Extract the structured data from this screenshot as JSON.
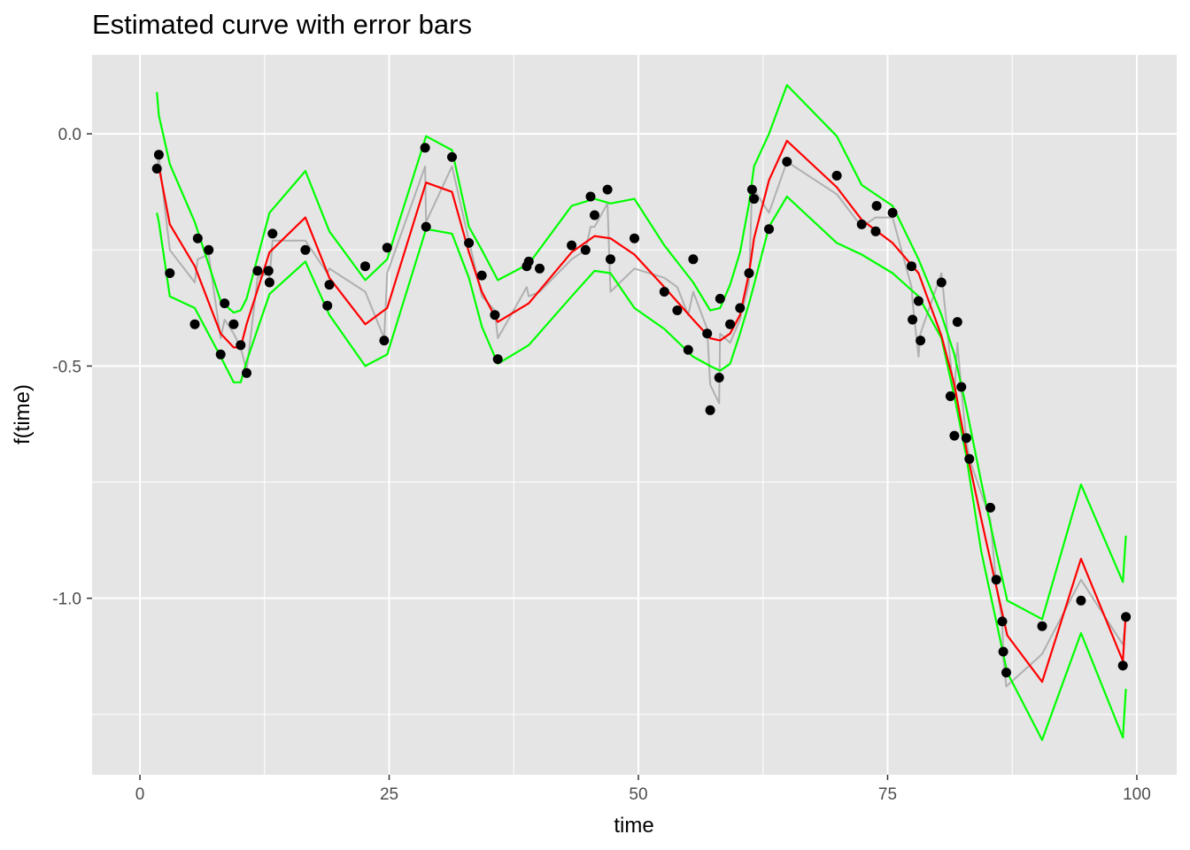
{
  "chart_data": {
    "type": "line",
    "title": "Estimated curve with error bars",
    "xlabel": "time",
    "ylabel": "f(time)",
    "xlim": [
      -4.8,
      104.0
    ],
    "ylim": [
      -1.38,
      0.17
    ],
    "x_ticks": [
      0,
      25,
      50,
      75,
      100
    ],
    "x_tick_labels": [
      "0",
      "25",
      "50",
      "75",
      "100"
    ],
    "y_ticks": [
      0.0,
      -0.5,
      -1.0
    ],
    "y_tick_labels": [
      "0.0",
      "-0.5",
      "-1.0"
    ],
    "grid": true,
    "legend": "none",
    "colors": {
      "panel": "#e5e5e5",
      "grid": "#ffffff",
      "points": "#000000",
      "raw_line": "#b0b0b0",
      "fit": "#ff0000",
      "bands": "#00ff00"
    },
    "series": [
      {
        "type": "scatter",
        "x": [
          1.7,
          1.9,
          3.0,
          5.5,
          5.8,
          6.9,
          8.1,
          8.5,
          9.4,
          10.1,
          10.7,
          11.8,
          12.9,
          13.0,
          13.3,
          16.6,
          18.8,
          19.0,
          22.6,
          24.5,
          24.8,
          28.6,
          28.7,
          31.3,
          33.0,
          34.3,
          35.6,
          35.9,
          38.8,
          39.0,
          40.1,
          43.3,
          44.7,
          45.2,
          45.6,
          46.9,
          47.2,
          49.6,
          52.6,
          53.9,
          55.0,
          55.5,
          56.9,
          57.2,
          58.1,
          58.2,
          59.2,
          60.2,
          61.1,
          61.4,
          61.6,
          63.1,
          64.9,
          69.9,
          72.4,
          73.8,
          73.9,
          75.5,
          77.4,
          77.5,
          78.1,
          78.3,
          80.4,
          81.3,
          81.7,
          82.0,
          82.4,
          82.9,
          83.2,
          85.3,
          85.9,
          86.5,
          86.6,
          86.9,
          90.5,
          94.4,
          98.6,
          98.9
        ],
        "y": [
          -0.075,
          -0.045,
          -0.3,
          -0.41,
          -0.225,
          -0.25,
          -0.475,
          -0.365,
          -0.41,
          -0.455,
          -0.515,
          -0.295,
          -0.295,
          -0.32,
          -0.215,
          -0.25,
          -0.37,
          -0.325,
          -0.285,
          -0.445,
          -0.245,
          -0.03,
          -0.2,
          -0.05,
          -0.235,
          -0.305,
          -0.39,
          -0.485,
          -0.285,
          -0.275,
          -0.29,
          -0.24,
          -0.25,
          -0.135,
          -0.175,
          -0.12,
          -0.27,
          -0.225,
          -0.34,
          -0.38,
          -0.465,
          -0.27,
          -0.43,
          -0.595,
          -0.525,
          -0.355,
          -0.41,
          -0.375,
          -0.3,
          -0.12,
          -0.14,
          -0.205,
          -0.06,
          -0.09,
          -0.195,
          -0.21,
          -0.155,
          -0.17,
          -0.285,
          -0.4,
          -0.36,
          -0.445,
          -0.32,
          -0.565,
          -0.65,
          -0.405,
          -0.545,
          -0.655,
          -0.7,
          -0.805,
          -0.96,
          -1.05,
          -1.115,
          -1.16,
          -1.06,
          -1.005,
          -1.145,
          -1.04
        ]
      },
      {
        "type": "line",
        "x": [
          1.7,
          1.9,
          3.0,
          5.5,
          5.8,
          6.9,
          8.1,
          8.5,
          9.4,
          10.1,
          10.7,
          11.8,
          12.9,
          13.0,
          13.3,
          16.6,
          18.8,
          19.0,
          22.6,
          24.5,
          24.8,
          28.6,
          28.7,
          31.3,
          33.0,
          34.3,
          35.6,
          35.9,
          38.8,
          39.0,
          40.1,
          43.3,
          44.7,
          45.2,
          45.6,
          46.9,
          47.2,
          49.6,
          52.6,
          53.9,
          55.0,
          55.5,
          56.9,
          57.2,
          58.1,
          58.2,
          59.2,
          60.2,
          61.1,
          61.4,
          61.6,
          63.1,
          64.9,
          69.9,
          72.4,
          73.8,
          73.9,
          75.5,
          77.4,
          77.5,
          78.1,
          78.3,
          80.4,
          81.3,
          81.7,
          82.0,
          82.4,
          82.9,
          83.2,
          85.3,
          85.9,
          86.5,
          86.6,
          86.9,
          90.5,
          94.4,
          98.6,
          98.9
        ],
        "y": [
          -0.07,
          -0.05,
          -0.25,
          -0.32,
          -0.27,
          -0.26,
          -0.44,
          -0.4,
          -0.43,
          -0.46,
          -0.51,
          -0.31,
          -0.3,
          -0.31,
          -0.23,
          -0.23,
          -0.3,
          -0.29,
          -0.34,
          -0.44,
          -0.3,
          -0.07,
          -0.19,
          -0.07,
          -0.23,
          -0.35,
          -0.38,
          -0.44,
          -0.33,
          -0.35,
          -0.34,
          -0.27,
          -0.25,
          -0.2,
          -0.2,
          -0.15,
          -0.34,
          -0.29,
          -0.31,
          -0.33,
          -0.39,
          -0.34,
          -0.42,
          -0.54,
          -0.58,
          -0.43,
          -0.45,
          -0.4,
          -0.32,
          -0.11,
          -0.12,
          -0.17,
          -0.06,
          -0.13,
          -0.2,
          -0.18,
          -0.18,
          -0.18,
          -0.33,
          -0.36,
          -0.48,
          -0.43,
          -0.3,
          -0.49,
          -0.56,
          -0.45,
          -0.55,
          -0.66,
          -0.7,
          -0.83,
          -0.97,
          -1.05,
          -1.13,
          -1.19,
          -1.12,
          -0.96,
          -1.1,
          -1.04
        ]
      },
      {
        "type": "line",
        "x": [
          1.7,
          1.9,
          3.0,
          5.5,
          8.1,
          9.4,
          10.1,
          10.7,
          13.0,
          16.6,
          19.0,
          22.6,
          24.8,
          28.7,
          31.3,
          33.0,
          34.3,
          35.9,
          39.0,
          43.3,
          45.6,
          47.2,
          49.6,
          52.6,
          55.5,
          57.2,
          58.2,
          59.2,
          60.2,
          61.1,
          61.6,
          63.1,
          64.9,
          69.9,
          72.4,
          75.5,
          78.1,
          80.4,
          81.7,
          82.9,
          84.4,
          85.9,
          87.0,
          90.5,
          94.4,
          98.6,
          98.9
        ],
        "y": [
          -0.065,
          -0.07,
          -0.195,
          -0.285,
          -0.43,
          -0.46,
          -0.46,
          -0.41,
          -0.255,
          -0.18,
          -0.31,
          -0.41,
          -0.375,
          -0.105,
          -0.125,
          -0.255,
          -0.34,
          -0.405,
          -0.365,
          -0.255,
          -0.22,
          -0.225,
          -0.26,
          -0.33,
          -0.4,
          -0.44,
          -0.445,
          -0.43,
          -0.39,
          -0.3,
          -0.225,
          -0.1,
          -0.015,
          -0.115,
          -0.185,
          -0.235,
          -0.3,
          -0.435,
          -0.54,
          -0.68,
          -0.83,
          -0.975,
          -1.08,
          -1.18,
          -0.915,
          -1.135,
          -1.03
        ]
      },
      {
        "type": "line",
        "x": [
          1.7,
          1.9,
          3.0,
          5.5,
          8.1,
          9.4,
          10.1,
          10.7,
          13.0,
          16.6,
          19.0,
          22.6,
          24.8,
          28.7,
          31.3,
          33.0,
          34.3,
          35.9,
          39.0,
          43.3,
          45.6,
          47.2,
          49.6,
          52.6,
          55.5,
          57.2,
          58.2,
          59.2,
          60.2,
          61.1,
          61.6,
          63.1,
          64.9,
          69.9,
          72.4,
          75.5,
          78.1,
          80.4,
          81.7,
          82.9,
          84.4,
          85.9,
          87.0,
          90.5,
          94.4,
          98.6,
          98.9
        ],
        "y": [
          0.09,
          0.04,
          -0.065,
          -0.19,
          -0.36,
          -0.385,
          -0.38,
          -0.355,
          -0.17,
          -0.08,
          -0.21,
          -0.315,
          -0.27,
          -0.005,
          -0.035,
          -0.2,
          -0.25,
          -0.315,
          -0.28,
          -0.155,
          -0.14,
          -0.15,
          -0.14,
          -0.24,
          -0.32,
          -0.38,
          -0.375,
          -0.325,
          -0.255,
          -0.15,
          -0.07,
          0.0,
          0.105,
          -0.005,
          -0.11,
          -0.155,
          -0.27,
          -0.39,
          -0.475,
          -0.59,
          -0.75,
          -0.9,
          -1.005,
          -1.045,
          -0.755,
          -0.965,
          -0.865
        ]
      },
      {
        "type": "line",
        "x": [
          1.7,
          1.9,
          3.0,
          5.5,
          8.1,
          9.4,
          10.1,
          10.7,
          13.0,
          16.6,
          19.0,
          22.6,
          24.8,
          28.7,
          31.3,
          33.0,
          34.3,
          35.9,
          39.0,
          43.3,
          45.6,
          47.2,
          49.6,
          52.6,
          55.5,
          57.2,
          58.2,
          59.2,
          60.2,
          61.1,
          61.6,
          63.1,
          64.9,
          69.9,
          72.4,
          75.5,
          78.1,
          80.4,
          81.7,
          82.9,
          84.4,
          85.9,
          87.0,
          90.5,
          94.4,
          98.6,
          98.9
        ],
        "y": [
          -0.17,
          -0.19,
          -0.35,
          -0.375,
          -0.48,
          -0.535,
          -0.535,
          -0.49,
          -0.345,
          -0.275,
          -0.39,
          -0.5,
          -0.475,
          -0.205,
          -0.215,
          -0.31,
          -0.415,
          -0.495,
          -0.455,
          -0.35,
          -0.295,
          -0.3,
          -0.375,
          -0.42,
          -0.48,
          -0.5,
          -0.51,
          -0.495,
          -0.43,
          -0.365,
          -0.325,
          -0.2,
          -0.135,
          -0.235,
          -0.26,
          -0.3,
          -0.35,
          -0.44,
          -0.565,
          -0.695,
          -0.9,
          -1.05,
          -1.16,
          -1.305,
          -1.075,
          -1.3,
          -1.195
        ]
      }
    ]
  }
}
